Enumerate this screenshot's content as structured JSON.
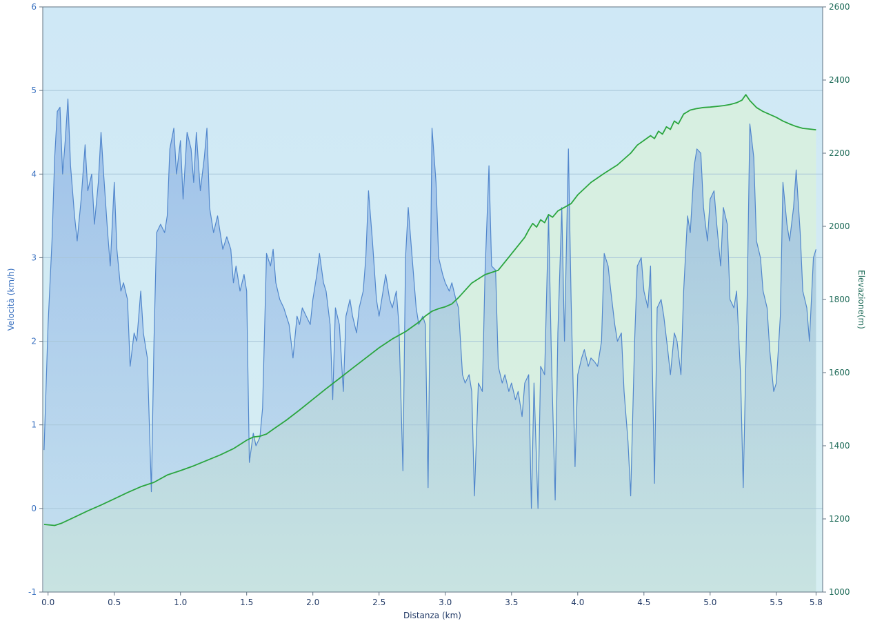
{
  "chart_data": {
    "type": "line",
    "title": "",
    "xlabel": "Distanza  (km)",
    "ylabel_left": "Velocità (km/h)",
    "ylabel_right": "Elevazione(m)",
    "xlim": [
      -0.04,
      5.85
    ],
    "ylim_left": [
      -1,
      6
    ],
    "ylim_right": [
      1000,
      2600
    ],
    "left_ticks": [
      6,
      5,
      4,
      3,
      2,
      1,
      0,
      -1
    ],
    "right_ticks": [
      2600,
      2400,
      2200,
      2000,
      1800,
      1600,
      1400,
      1200,
      1000
    ],
    "grid_left": [
      0,
      1,
      2,
      3,
      4,
      5
    ],
    "x_tick_values": [
      0,
      0.5,
      1,
      1.5,
      2,
      2.5,
      3,
      3.5,
      4,
      4.5,
      5,
      5.5,
      5.8
    ],
    "x_tick_labels": [
      "0.0",
      "0.5",
      "1.0",
      "1.5",
      "2.0",
      "2.5",
      "3.0",
      "3.5",
      "4.0",
      "4.5",
      "5.0",
      "5.5",
      "5.8"
    ],
    "legend_position": "none",
    "grid": true,
    "colors": {
      "plot_bg_top": "#cfe8f6",
      "plot_bg_bottom": "#d6eef2",
      "speed_fill": "#7fa8e0",
      "elev_fill": "#d8f0dc",
      "grid": "#a8c6d8",
      "border": "#5f7282",
      "left_axis_text": "#3b72c0",
      "right_axis_text": "#1e6b58",
      "x_axis_text": "#223a66"
    },
    "series": [
      {
        "name": "Velocità",
        "axis": "left",
        "unit": "km/h",
        "color": "#5186cc",
        "x": [
          -0.03,
          0.0,
          0.03,
          0.05,
          0.07,
          0.09,
          0.11,
          0.13,
          0.15,
          0.17,
          0.2,
          0.22,
          0.25,
          0.28,
          0.3,
          0.33,
          0.35,
          0.38,
          0.4,
          0.42,
          0.45,
          0.47,
          0.5,
          0.52,
          0.55,
          0.57,
          0.6,
          0.62,
          0.65,
          0.67,
          0.7,
          0.72,
          0.75,
          0.78,
          0.8,
          0.82,
          0.85,
          0.88,
          0.9,
          0.92,
          0.95,
          0.97,
          1.0,
          1.02,
          1.05,
          1.08,
          1.1,
          1.12,
          1.15,
          1.18,
          1.2,
          1.22,
          1.25,
          1.28,
          1.3,
          1.32,
          1.35,
          1.38,
          1.4,
          1.42,
          1.45,
          1.48,
          1.5,
          1.52,
          1.55,
          1.57,
          1.6,
          1.62,
          1.65,
          1.68,
          1.7,
          1.72,
          1.75,
          1.78,
          1.8,
          1.82,
          1.85,
          1.88,
          1.9,
          1.92,
          1.95,
          1.98,
          2.0,
          2.03,
          2.05,
          2.08,
          2.1,
          2.13,
          2.15,
          2.17,
          2.2,
          2.23,
          2.25,
          2.28,
          2.3,
          2.33,
          2.35,
          2.38,
          2.4,
          2.42,
          2.45,
          2.48,
          2.5,
          2.53,
          2.55,
          2.58,
          2.6,
          2.63,
          2.65,
          2.68,
          2.7,
          2.72,
          2.75,
          2.78,
          2.8,
          2.83,
          2.85,
          2.87,
          2.9,
          2.93,
          2.95,
          2.98,
          3.0,
          3.03,
          3.05,
          3.08,
          3.1,
          3.13,
          3.15,
          3.18,
          3.2,
          3.22,
          3.25,
          3.28,
          3.3,
          3.33,
          3.35,
          3.38,
          3.4,
          3.43,
          3.45,
          3.48,
          3.5,
          3.53,
          3.55,
          3.58,
          3.6,
          3.63,
          3.65,
          3.67,
          3.7,
          3.72,
          3.75,
          3.78,
          3.8,
          3.83,
          3.85,
          3.88,
          3.9,
          3.93,
          3.95,
          3.98,
          4.0,
          4.03,
          4.05,
          4.08,
          4.1,
          4.13,
          4.15,
          4.18,
          4.2,
          4.23,
          4.25,
          4.28,
          4.3,
          4.33,
          4.35,
          4.38,
          4.4,
          4.43,
          4.45,
          4.48,
          4.5,
          4.53,
          4.55,
          4.58,
          4.6,
          4.63,
          4.65,
          4.68,
          4.7,
          4.73,
          4.75,
          4.78,
          4.8,
          4.83,
          4.85,
          4.88,
          4.9,
          4.93,
          4.95,
          4.98,
          5.0,
          5.03,
          5.05,
          5.08,
          5.1,
          5.13,
          5.15,
          5.18,
          5.2,
          5.23,
          5.25,
          5.28,
          5.3,
          5.33,
          5.35,
          5.38,
          5.4,
          5.43,
          5.45,
          5.48,
          5.5,
          5.53,
          5.55,
          5.58,
          5.6,
          5.63,
          5.65,
          5.68,
          5.7,
          5.73,
          5.75,
          5.78,
          5.8
        ],
        "values": [
          0.7,
          2.2,
          3.2,
          4.2,
          4.75,
          4.8,
          4.0,
          4.4,
          4.9,
          4.1,
          3.5,
          3.2,
          3.7,
          4.35,
          3.8,
          4.0,
          3.4,
          3.9,
          4.5,
          4.0,
          3.3,
          2.9,
          3.9,
          3.1,
          2.6,
          2.7,
          2.5,
          1.7,
          2.1,
          2.0,
          2.6,
          2.1,
          1.8,
          0.2,
          2.0,
          3.3,
          3.4,
          3.3,
          3.5,
          4.3,
          4.55,
          4.0,
          4.4,
          3.7,
          4.5,
          4.3,
          3.9,
          4.5,
          3.8,
          4.2,
          4.55,
          3.6,
          3.3,
          3.5,
          3.3,
          3.1,
          3.25,
          3.1,
          2.7,
          2.9,
          2.6,
          2.8,
          2.6,
          0.55,
          0.9,
          0.75,
          0.85,
          1.2,
          3.05,
          2.9,
          3.1,
          2.7,
          2.5,
          2.4,
          2.3,
          2.2,
          1.8,
          2.3,
          2.2,
          2.4,
          2.3,
          2.2,
          2.5,
          2.8,
          3.05,
          2.7,
          2.6,
          2.2,
          1.3,
          2.4,
          2.2,
          1.4,
          2.3,
          2.5,
          2.3,
          2.1,
          2.4,
          2.6,
          3.0,
          3.8,
          3.2,
          2.5,
          2.3,
          2.6,
          2.8,
          2.5,
          2.4,
          2.6,
          2.2,
          0.45,
          3.0,
          3.6,
          3.0,
          2.4,
          2.2,
          2.3,
          2.2,
          0.25,
          4.55,
          3.9,
          3.0,
          2.8,
          2.7,
          2.6,
          2.7,
          2.5,
          2.4,
          1.6,
          1.5,
          1.6,
          1.4,
          0.15,
          1.5,
          1.4,
          2.8,
          4.1,
          2.9,
          2.85,
          1.7,
          1.5,
          1.6,
          1.4,
          1.5,
          1.3,
          1.4,
          1.1,
          1.5,
          1.6,
          0.0,
          1.5,
          0.0,
          1.7,
          1.6,
          3.5,
          1.9,
          0.1,
          2.1,
          3.6,
          2.0,
          4.3,
          2.5,
          0.5,
          1.6,
          1.8,
          1.9,
          1.7,
          1.8,
          1.75,
          1.7,
          2.0,
          3.05,
          2.9,
          2.6,
          2.2,
          2.0,
          2.1,
          1.4,
          0.8,
          0.15,
          2.0,
          2.9,
          3.0,
          2.6,
          2.4,
          2.9,
          0.3,
          2.4,
          2.5,
          2.3,
          1.9,
          1.6,
          2.1,
          2.0,
          1.6,
          2.6,
          3.5,
          3.3,
          4.1,
          4.3,
          4.25,
          3.6,
          3.2,
          3.7,
          3.8,
          3.4,
          2.9,
          3.6,
          3.4,
          2.5,
          2.4,
          2.6,
          1.6,
          0.25,
          2.5,
          4.6,
          4.2,
          3.2,
          3.0,
          2.6,
          2.4,
          1.9,
          1.4,
          1.5,
          2.3,
          3.9,
          3.4,
          3.2,
          3.6,
          4.05,
          3.3,
          2.6,
          2.4,
          2.0,
          3.0,
          3.1
        ]
      },
      {
        "name": "Elevazione",
        "axis": "right",
        "unit": "m",
        "color": "#2aa53e",
        "x": [
          -0.03,
          0.05,
          0.1,
          0.2,
          0.3,
          0.4,
          0.5,
          0.6,
          0.7,
          0.8,
          0.9,
          1.0,
          1.1,
          1.2,
          1.3,
          1.4,
          1.5,
          1.55,
          1.6,
          1.65,
          1.7,
          1.8,
          1.9,
          2.0,
          2.1,
          2.2,
          2.3,
          2.4,
          2.5,
          2.6,
          2.7,
          2.8,
          2.85,
          2.9,
          2.95,
          3.0,
          3.05,
          3.1,
          3.2,
          3.3,
          3.4,
          3.5,
          3.6,
          3.63,
          3.66,
          3.69,
          3.72,
          3.75,
          3.78,
          3.81,
          3.85,
          3.9,
          3.95,
          4.0,
          4.1,
          4.2,
          4.3,
          4.4,
          4.45,
          4.5,
          4.55,
          4.58,
          4.61,
          4.64,
          4.67,
          4.7,
          4.73,
          4.76,
          4.8,
          4.85,
          4.9,
          4.95,
          5.0,
          5.05,
          5.1,
          5.15,
          5.2,
          5.24,
          5.27,
          5.3,
          5.35,
          5.4,
          5.45,
          5.5,
          5.55,
          5.6,
          5.65,
          5.7,
          5.75,
          5.8
        ],
        "values": [
          1185,
          1182,
          1188,
          1205,
          1222,
          1238,
          1255,
          1272,
          1288,
          1300,
          1320,
          1332,
          1345,
          1360,
          1375,
          1392,
          1415,
          1424,
          1426,
          1432,
          1445,
          1470,
          1498,
          1527,
          1556,
          1584,
          1612,
          1640,
          1668,
          1692,
          1712,
          1738,
          1755,
          1768,
          1775,
          1780,
          1788,
          1805,
          1845,
          1868,
          1880,
          1925,
          1970,
          1990,
          2008,
          1998,
          2018,
          2010,
          2032,
          2025,
          2042,
          2052,
          2062,
          2086,
          2120,
          2145,
          2168,
          2200,
          2222,
          2235,
          2248,
          2240,
          2260,
          2252,
          2272,
          2265,
          2288,
          2280,
          2307,
          2318,
          2322,
          2325,
          2326,
          2328,
          2330,
          2333,
          2338,
          2345,
          2360,
          2344,
          2325,
          2314,
          2306,
          2298,
          2288,
          2280,
          2273,
          2268,
          2266,
          2264
        ]
      }
    ]
  }
}
